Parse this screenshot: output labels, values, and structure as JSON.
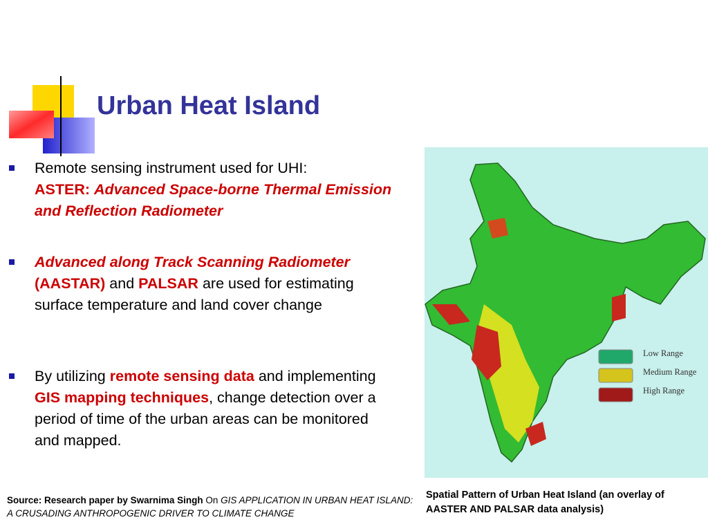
{
  "title": "Urban Heat Island",
  "bullets": [
    {
      "runs": [
        "Remote sensing instrument used for UHI:",
        "ASTER:",
        "Advanced Space-borne Thermal Emission and Reflection Radiometer"
      ]
    },
    {
      "runs": [
        "Advanced along Track Scanning Radiometer",
        "(AASTAR)",
        "and",
        "PALSAR",
        "are used for estimating surface temperature and land cover change"
      ]
    },
    {
      "runs": [
        "By utilizing",
        "remote sensing data",
        "and implementing",
        "GIS mapping techniques",
        ",",
        "change detection over a period of time of the urban areas can be monitored and mapped."
      ]
    }
  ],
  "source": {
    "runs": [
      "Source:  Research paper by Swarnima Singh",
      "On",
      "GIS APPLICATION IN URBAN HEAT ISLAND: A CRUSADING ANTHROPOGENIC DRIVER TO CLIMATE CHANGE"
    ]
  },
  "map": {
    "legend": [
      "Low Range",
      "Medium Range",
      "High Range"
    ],
    "caption": "Spatial Pattern of Urban Heat Island (an overlay of AASTER AND PALSAR data analysis)"
  }
}
